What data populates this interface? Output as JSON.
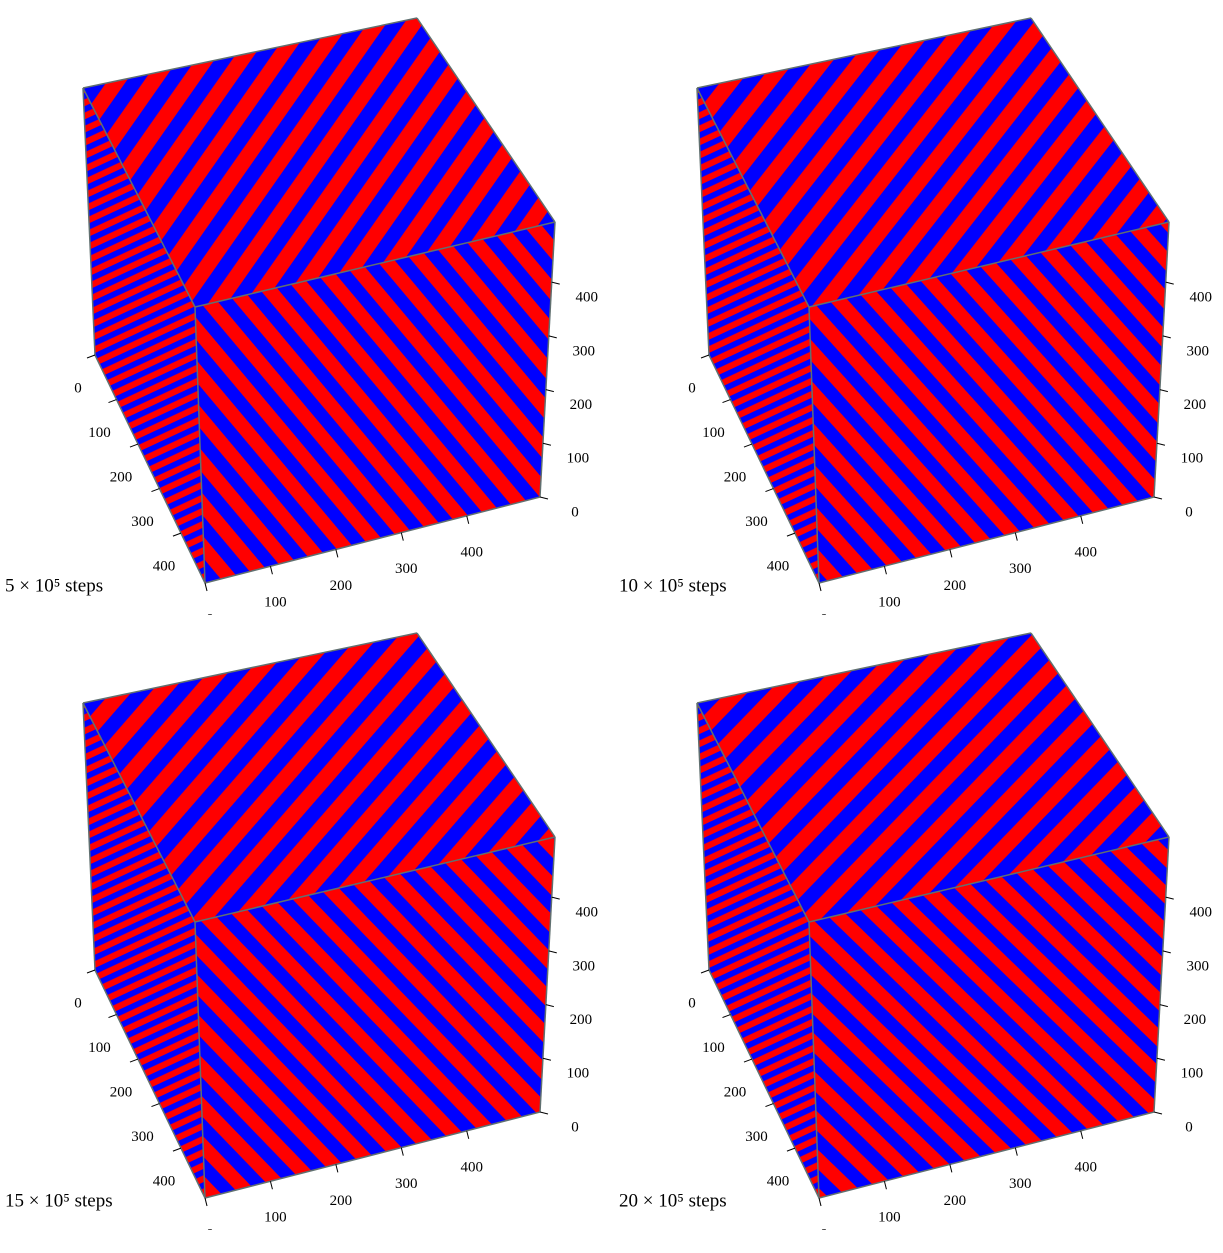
{
  "chart_data": [
    {
      "type": "cube",
      "title": "5 × 10⁵ steps",
      "colors": [
        "#ff0000",
        "#0000ff"
      ],
      "xlim": [
        0,
        512
      ],
      "xticks": [
        0,
        100,
        200,
        300,
        400
      ],
      "ylim": [
        0,
        512
      ],
      "yticks": [
        0,
        100,
        200,
        300,
        400
      ],
      "zlim": [
        0,
        512
      ],
      "zticks": [
        0,
        100,
        200,
        300,
        400
      ]
    },
    {
      "type": "cube",
      "title": "10 × 10⁵ steps",
      "colors": [
        "#ff0000",
        "#0000ff"
      ],
      "xlim": [
        0,
        512
      ],
      "xticks": [
        0,
        100,
        200,
        300,
        400
      ],
      "ylim": [
        0,
        512
      ],
      "yticks": [
        0,
        100,
        200,
        300,
        400
      ],
      "zlim": [
        0,
        512
      ],
      "zticks": [
        0,
        100,
        200,
        300,
        400
      ]
    },
    {
      "type": "cube",
      "title": "15 × 10⁵ steps",
      "colors": [
        "#ff0000",
        "#0000ff"
      ],
      "xlim": [
        0,
        512
      ],
      "xticks": [
        0,
        100,
        200,
        300,
        400
      ],
      "ylim": [
        0,
        512
      ],
      "yticks": [
        0,
        100,
        200,
        300,
        400
      ],
      "zlim": [
        0,
        512
      ],
      "zticks": [
        0,
        100,
        200,
        300,
        400
      ]
    },
    {
      "type": "cube",
      "title": "20 × 10⁵ steps",
      "colors": [
        "#ff0000",
        "#0000ff"
      ],
      "xlim": [
        0,
        512
      ],
      "xticks": [
        0,
        100,
        200,
        300,
        400
      ],
      "ylim": [
        0,
        512
      ],
      "yticks": [
        0,
        100,
        200,
        300,
        400
      ],
      "zlim": [
        0,
        512
      ],
      "zticks": [
        0,
        100,
        200,
        300,
        400
      ]
    }
  ]
}
